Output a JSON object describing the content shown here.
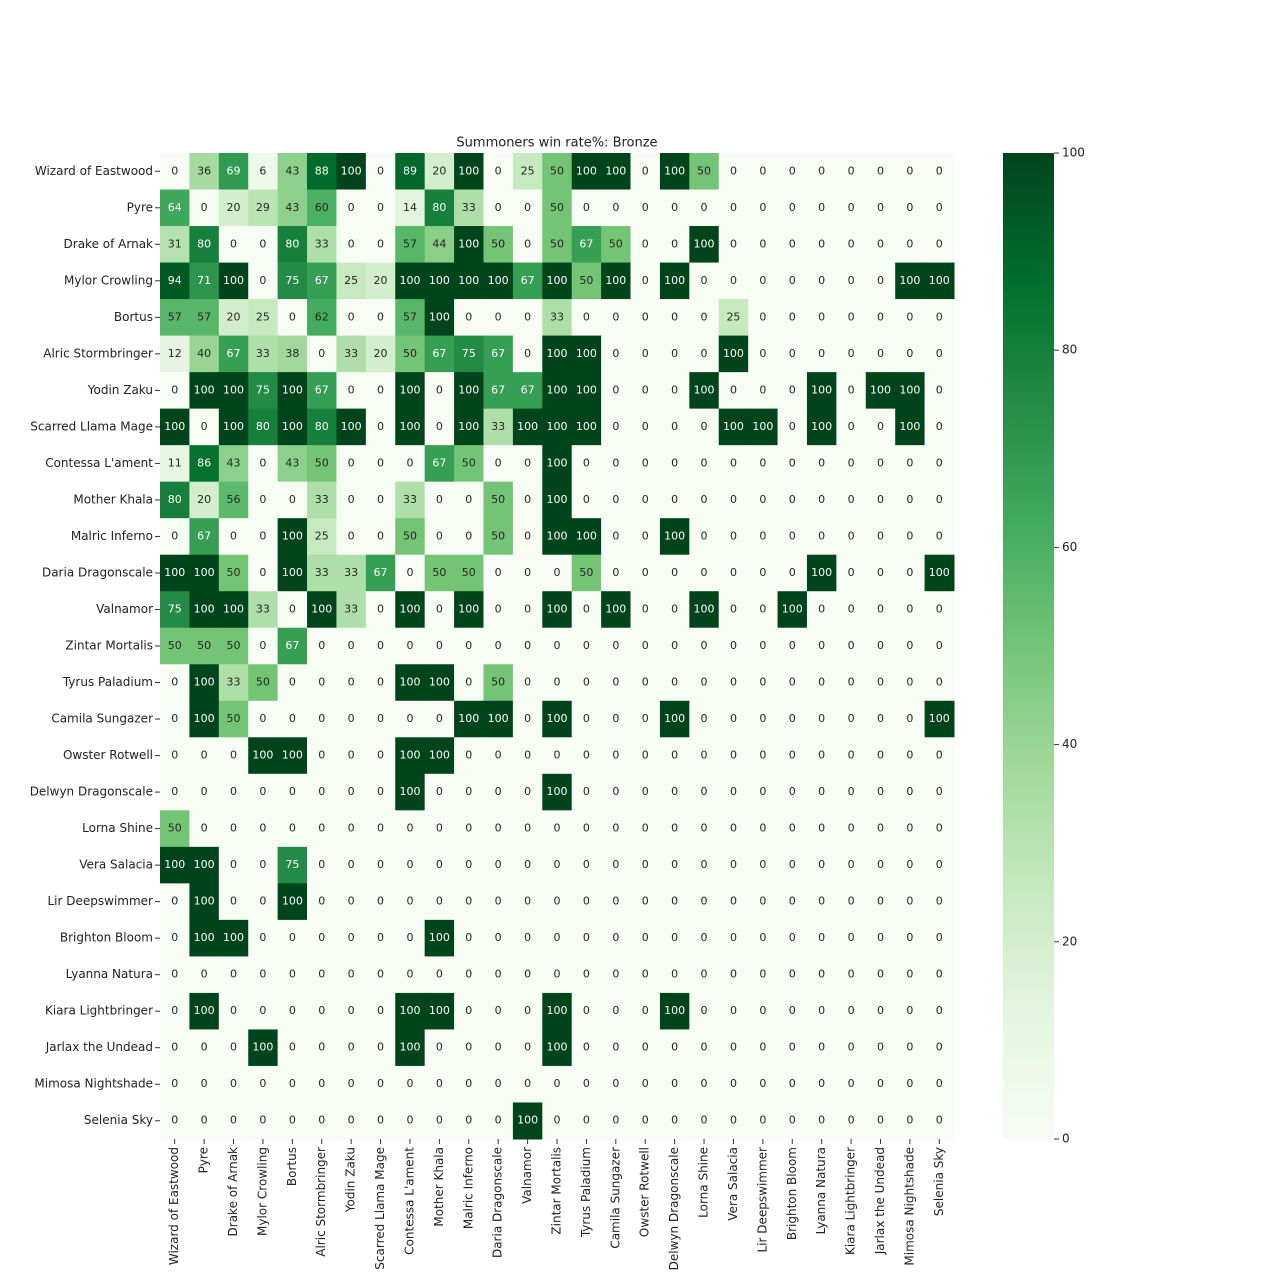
{
  "chart_data": {
    "type": "heatmap",
    "title": "Summoners win rate%: Bronze",
    "x_categories": [
      "Wizard of Eastwood",
      "Pyre",
      "Drake of Arnak",
      "Mylor Crowling",
      "Bortus",
      "Alric Stormbringer",
      "Yodin Zaku",
      "Scarred Llama Mage",
      "Contessa L'ament",
      "Mother Khala",
      "Malric Inferno",
      "Daria Dragonscale",
      "Valnamor",
      "Zintar Mortalis",
      "Tyrus Paladium",
      "Camila Sungazer",
      "Owster Rotwell",
      "Delwyn Dragonscale",
      "Lorna Shine",
      "Vera Salacia",
      "Lir Deepswimmer",
      "Brighton Bloom",
      "Lyanna Natura",
      "Kiara Lightbringer",
      "Jarlax the Undead",
      "Mimosa Nightshade",
      "Selenia Sky"
    ],
    "y_categories": [
      "Wizard of Eastwood",
      "Pyre",
      "Drake of Arnak",
      "Mylor Crowling",
      "Bortus",
      "Alric Stormbringer",
      "Yodin Zaku",
      "Scarred Llama Mage",
      "Contessa L'ament",
      "Mother Khala",
      "Malric Inferno",
      "Daria Dragonscale",
      "Valnamor",
      "Zintar Mortalis",
      "Tyrus Paladium",
      "Camila Sungazer",
      "Owster Rotwell",
      "Delwyn Dragonscale",
      "Lorna Shine",
      "Vera Salacia",
      "Lir Deepswimmer",
      "Brighton Bloom",
      "Lyanna Natura",
      "Kiara Lightbringer",
      "Jarlax the Undead",
      "Mimosa Nightshade",
      "Selenia Sky"
    ],
    "values": [
      [
        0,
        36,
        69,
        6,
        43,
        88,
        100,
        0,
        89,
        20,
        100,
        0,
        25,
        50,
        100,
        100,
        0,
        100,
        50,
        0,
        0,
        0,
        0,
        0,
        0,
        0,
        0
      ],
      [
        64,
        0,
        20,
        29,
        43,
        60,
        0,
        0,
        14,
        80,
        33,
        0,
        0,
        50,
        0,
        0,
        0,
        0,
        0,
        0,
        0,
        0,
        0,
        0,
        0,
        0,
        0
      ],
      [
        31,
        80,
        0,
        0,
        80,
        33,
        0,
        0,
        57,
        44,
        100,
        50,
        0,
        50,
        67,
        50,
        0,
        0,
        100,
        0,
        0,
        0,
        0,
        0,
        0,
        0,
        0
      ],
      [
        94,
        71,
        100,
        0,
        75,
        67,
        25,
        20,
        100,
        100,
        100,
        100,
        67,
        100,
        50,
        100,
        0,
        100,
        0,
        0,
        0,
        0,
        0,
        0,
        0,
        100,
        100
      ],
      [
        57,
        57,
        20,
        25,
        0,
        62,
        0,
        0,
        57,
        100,
        0,
        0,
        0,
        33,
        0,
        0,
        0,
        0,
        0,
        25,
        0,
        0,
        0,
        0,
        0,
        0,
        0
      ],
      [
        12,
        40,
        67,
        33,
        38,
        0,
        33,
        20,
        50,
        67,
        75,
        67,
        0,
        100,
        100,
        0,
        0,
        0,
        0,
        100,
        0,
        0,
        0,
        0,
        0,
        0,
        0
      ],
      [
        0,
        100,
        100,
        75,
        100,
        67,
        0,
        0,
        100,
        0,
        100,
        67,
        67,
        100,
        100,
        0,
        0,
        0,
        100,
        0,
        0,
        0,
        100,
        0,
        100,
        100,
        0
      ],
      [
        100,
        0,
        100,
        80,
        100,
        80,
        100,
        0,
        100,
        0,
        100,
        33,
        100,
        100,
        100,
        0,
        0,
        0,
        0,
        100,
        100,
        0,
        100,
        0,
        0,
        100,
        0
      ],
      [
        11,
        86,
        43,
        0,
        43,
        50,
        0,
        0,
        0,
        67,
        50,
        0,
        0,
        100,
        0,
        0,
        0,
        0,
        0,
        0,
        0,
        0,
        0,
        0,
        0,
        0,
        0
      ],
      [
        80,
        20,
        56,
        0,
        0,
        33,
        0,
        0,
        33,
        0,
        0,
        50,
        0,
        100,
        0,
        0,
        0,
        0,
        0,
        0,
        0,
        0,
        0,
        0,
        0,
        0,
        0
      ],
      [
        0,
        67,
        0,
        0,
        100,
        25,
        0,
        0,
        50,
        0,
        0,
        50,
        0,
        100,
        100,
        0,
        0,
        100,
        0,
        0,
        0,
        0,
        0,
        0,
        0,
        0,
        0
      ],
      [
        100,
        100,
        50,
        0,
        100,
        33,
        33,
        67,
        0,
        50,
        50,
        0,
        0,
        0,
        50,
        0,
        0,
        0,
        0,
        0,
        0,
        0,
        100,
        0,
        0,
        0,
        100
      ],
      [
        75,
        100,
        100,
        33,
        0,
        100,
        33,
        0,
        100,
        0,
        100,
        0,
        0,
        100,
        0,
        100,
        0,
        0,
        100,
        0,
        0,
        100,
        0,
        0,
        0,
        0,
        0
      ],
      [
        50,
        50,
        50,
        0,
        67,
        0,
        0,
        0,
        0,
        0,
        0,
        0,
        0,
        0,
        0,
        0,
        0,
        0,
        0,
        0,
        0,
        0,
        0,
        0,
        0,
        0,
        0
      ],
      [
        0,
        100,
        33,
        50,
        0,
        0,
        0,
        0,
        100,
        100,
        0,
        50,
        0,
        0,
        0,
        0,
        0,
        0,
        0,
        0,
        0,
        0,
        0,
        0,
        0,
        0,
        0
      ],
      [
        0,
        100,
        50,
        0,
        0,
        0,
        0,
        0,
        0,
        0,
        100,
        100,
        0,
        100,
        0,
        0,
        0,
        100,
        0,
        0,
        0,
        0,
        0,
        0,
        0,
        0,
        100
      ],
      [
        0,
        0,
        0,
        100,
        100,
        0,
        0,
        0,
        100,
        100,
        0,
        0,
        0,
        0,
        0,
        0,
        0,
        0,
        0,
        0,
        0,
        0,
        0,
        0,
        0,
        0,
        0
      ],
      [
        0,
        0,
        0,
        0,
        0,
        0,
        0,
        0,
        100,
        0,
        0,
        0,
        0,
        100,
        0,
        0,
        0,
        0,
        0,
        0,
        0,
        0,
        0,
        0,
        0,
        0,
        0
      ],
      [
        50,
        0,
        0,
        0,
        0,
        0,
        0,
        0,
        0,
        0,
        0,
        0,
        0,
        0,
        0,
        0,
        0,
        0,
        0,
        0,
        0,
        0,
        0,
        0,
        0,
        0,
        0
      ],
      [
        100,
        100,
        0,
        0,
        75,
        0,
        0,
        0,
        0,
        0,
        0,
        0,
        0,
        0,
        0,
        0,
        0,
        0,
        0,
        0,
        0,
        0,
        0,
        0,
        0,
        0,
        0
      ],
      [
        0,
        100,
        0,
        0,
        100,
        0,
        0,
        0,
        0,
        0,
        0,
        0,
        0,
        0,
        0,
        0,
        0,
        0,
        0,
        0,
        0,
        0,
        0,
        0,
        0,
        0,
        0
      ],
      [
        0,
        100,
        100,
        0,
        0,
        0,
        0,
        0,
        0,
        100,
        0,
        0,
        0,
        0,
        0,
        0,
        0,
        0,
        0,
        0,
        0,
        0,
        0,
        0,
        0,
        0,
        0
      ],
      [
        0,
        0,
        0,
        0,
        0,
        0,
        0,
        0,
        0,
        0,
        0,
        0,
        0,
        0,
        0,
        0,
        0,
        0,
        0,
        0,
        0,
        0,
        0,
        0,
        0,
        0,
        0
      ],
      [
        0,
        100,
        0,
        0,
        0,
        0,
        0,
        0,
        100,
        100,
        0,
        0,
        0,
        100,
        0,
        0,
        0,
        100,
        0,
        0,
        0,
        0,
        0,
        0,
        0,
        0,
        0
      ],
      [
        0,
        0,
        0,
        100,
        0,
        0,
        0,
        0,
        100,
        0,
        0,
        0,
        0,
        100,
        0,
        0,
        0,
        0,
        0,
        0,
        0,
        0,
        0,
        0,
        0,
        0,
        0
      ],
      [
        0,
        0,
        0,
        0,
        0,
        0,
        0,
        0,
        0,
        0,
        0,
        0,
        0,
        0,
        0,
        0,
        0,
        0,
        0,
        0,
        0,
        0,
        0,
        0,
        0,
        0,
        0
      ],
      [
        0,
        0,
        0,
        0,
        0,
        0,
        0,
        0,
        0,
        0,
        0,
        0,
        100,
        0,
        0,
        0,
        0,
        0,
        0,
        0,
        0,
        0,
        0,
        0,
        0,
        0,
        0
      ]
    ],
    "zlim": [
      0,
      100
    ],
    "zticks": [
      0,
      20,
      40,
      60,
      80,
      100
    ],
    "colormap": [
      "#f7fcf5",
      "#e5f5e0",
      "#c7e9c0",
      "#a1d99b",
      "#74c476",
      "#41ab5d",
      "#238b45",
      "#006d2c",
      "#00441b"
    ]
  }
}
